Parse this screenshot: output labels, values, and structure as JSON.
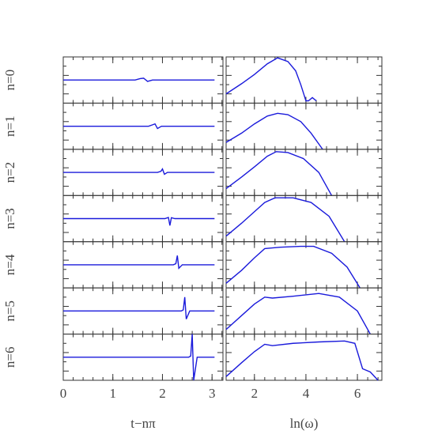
{
  "chart_data": [
    {
      "type": "line",
      "xlabel": "t−nπ",
      "xlim": [
        0,
        3.22
      ],
      "xticks": [
        0,
        1,
        2,
        3
      ],
      "ylim": [
        -1,
        1
      ],
      "color": "#1a1adb",
      "series": [
        {
          "name": "n=0",
          "x": [
            0,
            1.45,
            1.55,
            1.62,
            1.7,
            1.8,
            3.05
          ],
          "values": [
            0,
            0,
            0.06,
            0.08,
            -0.06,
            0,
            0
          ]
        },
        {
          "name": "n=1",
          "x": [
            0,
            1.72,
            1.8,
            1.85,
            1.9,
            1.98,
            3.05
          ],
          "values": [
            0,
            0,
            0.06,
            0.1,
            -0.1,
            0,
            0
          ]
        },
        {
          "name": "n=2",
          "x": [
            0,
            1.9,
            1.97,
            2.0,
            2.04,
            2.1,
            3.05
          ],
          "values": [
            0,
            0,
            0.05,
            0.15,
            -0.08,
            0,
            0
          ]
        },
        {
          "name": "n=3",
          "x": [
            0,
            2.05,
            2.12,
            2.15,
            2.18,
            2.25,
            3.05
          ],
          "values": [
            0,
            0,
            0.05,
            -0.3,
            0.04,
            0,
            0
          ]
        },
        {
          "name": "n=4",
          "x": [
            0,
            2.22,
            2.27,
            2.3,
            2.33,
            2.4,
            3.05
          ],
          "values": [
            0,
            0,
            0.05,
            0.4,
            -0.15,
            0,
            0
          ]
        },
        {
          "name": "n=5",
          "x": [
            0,
            2.38,
            2.42,
            2.45,
            2.48,
            2.55,
            3.05
          ],
          "values": [
            0,
            0,
            0.05,
            0.6,
            -0.35,
            0,
            0
          ]
        },
        {
          "name": "n=6",
          "x": [
            0,
            2.53,
            2.57,
            2.6,
            2.63,
            2.7,
            3.05
          ],
          "values": [
            0,
            0,
            0.05,
            1,
            -1,
            0,
            0
          ]
        }
      ]
    },
    {
      "type": "line",
      "xlabel": "ln(ω)",
      "xlim": [
        0.9,
        6.95
      ],
      "xticks": [
        2,
        4,
        6
      ],
      "ylim": [
        0,
        1
      ],
      "color": "#1a1adb",
      "series": [
        {
          "x": [
            0.9,
            1.5,
            2.0,
            2.5,
            2.9,
            3.3,
            3.6,
            3.8,
            4.0,
            4.1,
            4.25,
            4.4
          ],
          "values": [
            0.2,
            0.42,
            0.62,
            0.85,
            0.98,
            0.9,
            0.7,
            0.4,
            0.05,
            0.05,
            0.12,
            0.05
          ]
        },
        {
          "x": [
            0.9,
            1.5,
            2.0,
            2.5,
            2.9,
            3.3,
            3.8,
            4.2,
            4.65
          ],
          "values": [
            0.15,
            0.35,
            0.55,
            0.72,
            0.78,
            0.75,
            0.6,
            0.35,
            0
          ]
        },
        {
          "x": [
            0.9,
            1.5,
            2.0,
            2.5,
            2.85,
            3.3,
            3.9,
            4.5,
            5.0
          ],
          "values": [
            0.15,
            0.4,
            0.62,
            0.85,
            0.95,
            0.93,
            0.8,
            0.5,
            0
          ]
        },
        {
          "x": [
            0.9,
            1.5,
            2.0,
            2.4,
            2.8,
            3.5,
            4.2,
            4.9,
            5.5
          ],
          "values": [
            0.12,
            0.4,
            0.65,
            0.85,
            0.95,
            0.95,
            0.85,
            0.55,
            0
          ]
        },
        {
          "x": [
            0.9,
            1.5,
            2.0,
            2.4,
            3.0,
            3.8,
            4.3,
            5.0,
            5.6,
            6.1
          ],
          "values": [
            0.1,
            0.38,
            0.65,
            0.85,
            0.88,
            0.9,
            0.9,
            0.75,
            0.45,
            0
          ]
        },
        {
          "x": [
            0.9,
            1.5,
            2.0,
            2.4,
            2.7,
            3.5,
            4.5,
            5.3,
            6.0,
            6.5
          ],
          "values": [
            0.1,
            0.4,
            0.65,
            0.8,
            0.78,
            0.82,
            0.88,
            0.8,
            0.5,
            0
          ]
        },
        {
          "x": [
            0.9,
            1.5,
            2.0,
            2.4,
            2.7,
            3.5,
            4.5,
            5.5,
            5.9,
            6.2,
            6.5,
            6.8
          ],
          "values": [
            0.08,
            0.38,
            0.62,
            0.78,
            0.75,
            0.8,
            0.83,
            0.85,
            0.8,
            0.25,
            0.18,
            0
          ]
        }
      ]
    }
  ]
}
